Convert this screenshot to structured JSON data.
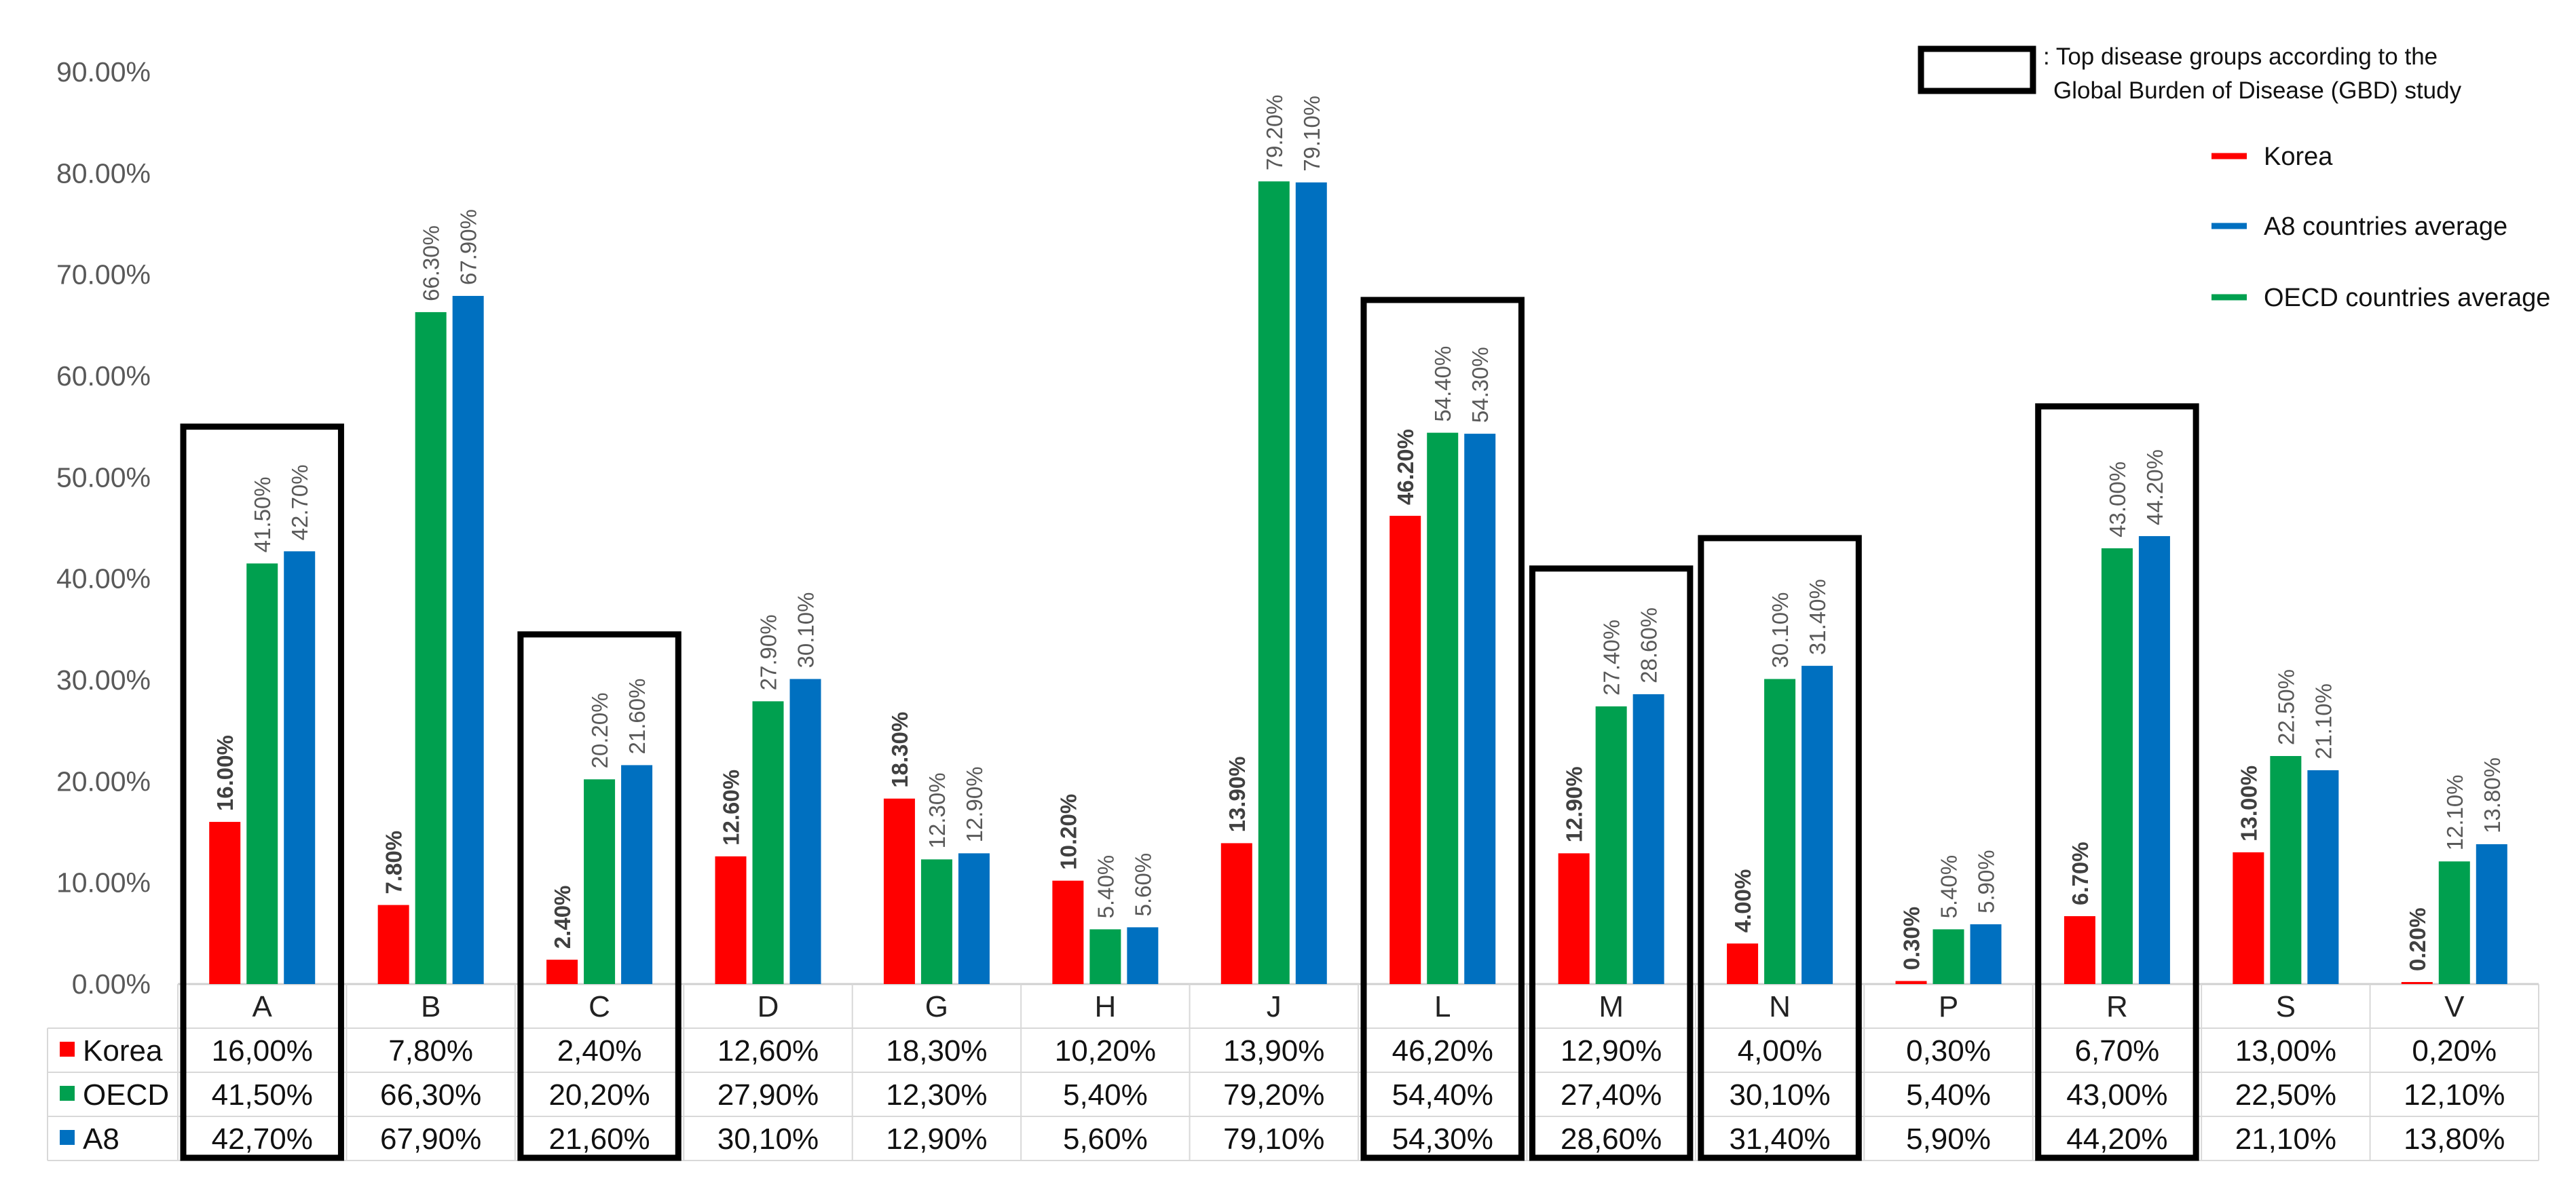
{
  "chart_data": {
    "type": "bar",
    "title": "",
    "xlabel": "",
    "ylabel": "",
    "ylim": [
      0,
      90
    ],
    "yticks": [
      "0.00%",
      "10.00%",
      "20.00%",
      "30.00%",
      "40.00%",
      "50.00%",
      "60.00%",
      "70.00%",
      "80.00%",
      "90.00%"
    ],
    "categories": [
      "A",
      "B",
      "C",
      "D",
      "G",
      "H",
      "J",
      "L",
      "M",
      "N",
      "P",
      "R",
      "S",
      "V"
    ],
    "series": [
      {
        "name": "Korea",
        "color": "#ff0000",
        "values": [
          16.0,
          7.8,
          2.4,
          12.6,
          18.3,
          10.2,
          13.9,
          46.2,
          12.9,
          4.0,
          0.3,
          6.7,
          13.0,
          0.2
        ],
        "labels": [
          "16.00%",
          "7.80%",
          "2.40%",
          "12.60%",
          "18.30%",
          "10.20%",
          "13.90%",
          "46.20%",
          "12.90%",
          "4.00%",
          "0.30%",
          "6.70%",
          "13.00%",
          "0.20%"
        ]
      },
      {
        "name": "OECD",
        "color": "#00a04f",
        "values": [
          41.5,
          66.3,
          20.2,
          27.9,
          12.3,
          5.4,
          79.2,
          54.4,
          27.4,
          30.1,
          5.4,
          43.0,
          22.5,
          12.1
        ],
        "labels": [
          "41.50%",
          "66.30%",
          "20.20%",
          "27.90%",
          "12.30%",
          "5.40%",
          "79.20%",
          "54.40%",
          "27.40%",
          "30.10%",
          "5.40%",
          "43.00%",
          "22.50%",
          "12.10%"
        ]
      },
      {
        "name": "A8",
        "color": "#0070c0",
        "values": [
          42.7,
          67.9,
          21.6,
          30.1,
          12.9,
          5.6,
          79.1,
          54.3,
          28.6,
          31.4,
          5.9,
          44.2,
          21.1,
          13.8
        ],
        "labels": [
          "42.70%",
          "67.90%",
          "21.60%",
          "30.10%",
          "12.90%",
          "5.60%",
          "79.10%",
          "54.30%",
          "28.60%",
          "31.40%",
          "5.90%",
          "44.20%",
          "21.10%",
          "13.80%"
        ]
      }
    ],
    "table": {
      "row_headers": [
        "Korea",
        "OECD",
        "A8"
      ],
      "rows": [
        [
          "16,00%",
          "7,80%",
          "2,40%",
          "12,60%",
          "18,30%",
          "10,20%",
          "13,90%",
          "46,20%",
          "12,90%",
          "4,00%",
          "0,30%",
          "6,70%",
          "13,00%",
          "0,20%"
        ],
        [
          "41,50%",
          "66,30%",
          "20,20%",
          "27,90%",
          "12,30%",
          "5,40%",
          "79,20%",
          "54,40%",
          "27,40%",
          "30,10%",
          "5,40%",
          "43,00%",
          "22,50%",
          "12,10%"
        ],
        [
          "42,70%",
          "67,90%",
          "21,60%",
          "30,10%",
          "12,90%",
          "5,60%",
          "79,10%",
          "54,30%",
          "28,60%",
          "31,40%",
          "5,90%",
          "44,20%",
          "21,10%",
          "13,80%"
        ]
      ]
    },
    "highlighted_categories": [
      "A",
      "C",
      "L",
      "M",
      "N",
      "R"
    ],
    "highlight_box_tops": [
      55,
      34.5,
      67.5,
      41,
      44,
      57
    ],
    "legend": {
      "placement": "top-right",
      "gbd_line1": ": Top disease groups according to the",
      "gbd_line2": "Global Burden of Disease (GBD) study",
      "items": [
        {
          "label": "Korea",
          "color": "#ff0000"
        },
        {
          "label": "A8 countries average",
          "color": "#0070c0"
        },
        {
          "label": "OECD countries average",
          "color": "#00a04f"
        }
      ]
    }
  }
}
